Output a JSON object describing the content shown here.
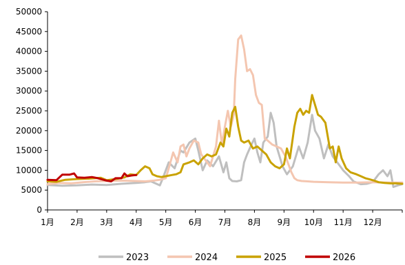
{
  "chart_data": {
    "type": "line",
    "title": "",
    "xlabel": "",
    "ylabel": "",
    "ylim": [
      0,
      50000
    ],
    "yticks": [
      0,
      5000,
      10000,
      15000,
      20000,
      25000,
      30000,
      35000,
      40000,
      45000,
      50000
    ],
    "xlim": [
      1,
      13
    ],
    "xticks": [
      {
        "x": 1,
        "label": "1月"
      },
      {
        "x": 2,
        "label": "2月"
      },
      {
        "x": 3,
        "label": "3月"
      },
      {
        "x": 4,
        "label": "4月"
      },
      {
        "x": 5,
        "label": "5月"
      },
      {
        "x": 6,
        "label": "6月"
      },
      {
        "x": 7,
        "label": "7月"
      },
      {
        "x": 8,
        "label": "8月"
      },
      {
        "x": 9,
        "label": "9月"
      },
      {
        "x": 10,
        "label": "10月"
      },
      {
        "x": 11,
        "label": "11月"
      },
      {
        "x": 12,
        "label": "12月"
      }
    ],
    "grid": false,
    "legend_position": "bottom",
    "series": [
      {
        "name": "2023",
        "color": "#bfbfbf",
        "points": [
          [
            1.0,
            6300
          ],
          [
            1.5,
            6100
          ],
          [
            2.0,
            6200
          ],
          [
            2.5,
            6400
          ],
          [
            3.0,
            6300
          ],
          [
            3.5,
            6600
          ],
          [
            4.0,
            6800
          ],
          [
            4.3,
            7000
          ],
          [
            4.5,
            7200
          ],
          [
            4.8,
            6200
          ],
          [
            4.9,
            8000
          ],
          [
            5.1,
            12000
          ],
          [
            5.3,
            10500
          ],
          [
            5.5,
            15000
          ],
          [
            5.6,
            14500
          ],
          [
            5.8,
            17000
          ],
          [
            5.9,
            17500
          ],
          [
            6.0,
            18000
          ],
          [
            6.1,
            15000
          ],
          [
            6.25,
            10000
          ],
          [
            6.4,
            12500
          ],
          [
            6.6,
            11000
          ],
          [
            6.8,
            13500
          ],
          [
            6.95,
            9500
          ],
          [
            7.05,
            12000
          ],
          [
            7.15,
            8000
          ],
          [
            7.25,
            7300
          ],
          [
            7.4,
            7200
          ],
          [
            7.55,
            7500
          ],
          [
            7.65,
            12000
          ],
          [
            7.75,
            14000
          ],
          [
            7.9,
            16500
          ],
          [
            8.0,
            18000
          ],
          [
            8.1,
            14500
          ],
          [
            8.2,
            12000
          ],
          [
            8.3,
            17000
          ],
          [
            8.45,
            18500
          ],
          [
            8.55,
            24500
          ],
          [
            8.65,
            22000
          ],
          [
            8.75,
            16000
          ],
          [
            8.85,
            13500
          ],
          [
            8.95,
            11000
          ],
          [
            9.1,
            9000
          ],
          [
            9.3,
            11000
          ],
          [
            9.5,
            16000
          ],
          [
            9.65,
            13000
          ],
          [
            9.8,
            17000
          ],
          [
            9.95,
            24000
          ],
          [
            10.05,
            20000
          ],
          [
            10.2,
            18000
          ],
          [
            10.35,
            13000
          ],
          [
            10.5,
            16500
          ],
          [
            10.65,
            13500
          ],
          [
            10.8,
            12000
          ],
          [
            11.0,
            10000
          ],
          [
            11.2,
            8500
          ],
          [
            11.35,
            7200
          ],
          [
            11.6,
            6500
          ],
          [
            11.8,
            6600
          ],
          [
            12.0,
            7000
          ],
          [
            12.2,
            9000
          ],
          [
            12.35,
            10000
          ],
          [
            12.5,
            8500
          ],
          [
            12.6,
            10000
          ],
          [
            12.7,
            5800
          ],
          [
            12.85,
            6200
          ],
          [
            13.0,
            6500
          ]
        ]
      },
      {
        "name": "2024",
        "color": "#f4c6b0",
        "points": [
          [
            1.0,
            6500
          ],
          [
            1.4,
            6800
          ],
          [
            1.8,
            6700
          ],
          [
            2.2,
            7000
          ],
          [
            2.6,
            7200
          ],
          [
            3.0,
            7300
          ],
          [
            3.5,
            7400
          ],
          [
            4.0,
            7300
          ],
          [
            4.3,
            7200
          ],
          [
            4.6,
            7400
          ],
          [
            4.8,
            7600
          ],
          [
            5.0,
            8000
          ],
          [
            5.1,
            10500
          ],
          [
            5.25,
            14500
          ],
          [
            5.4,
            12000
          ],
          [
            5.5,
            16000
          ],
          [
            5.6,
            16500
          ],
          [
            5.7,
            13500
          ],
          [
            5.8,
            15500
          ],
          [
            5.95,
            17500
          ],
          [
            6.1,
            17000
          ],
          [
            6.2,
            14000
          ],
          [
            6.35,
            12500
          ],
          [
            6.5,
            11000
          ],
          [
            6.6,
            13500
          ],
          [
            6.7,
            16000
          ],
          [
            6.8,
            22500
          ],
          [
            6.9,
            16500
          ],
          [
            7.0,
            21000
          ],
          [
            7.1,
            25000
          ],
          [
            7.2,
            21000
          ],
          [
            7.3,
            24000
          ],
          [
            7.35,
            33000
          ],
          [
            7.45,
            43000
          ],
          [
            7.55,
            44000
          ],
          [
            7.65,
            40500
          ],
          [
            7.75,
            35000
          ],
          [
            7.85,
            35500
          ],
          [
            7.95,
            34000
          ],
          [
            8.05,
            29000
          ],
          [
            8.15,
            27000
          ],
          [
            8.25,
            26500
          ],
          [
            8.35,
            18000
          ],
          [
            8.45,
            17500
          ],
          [
            8.6,
            16500
          ],
          [
            8.75,
            16000
          ],
          [
            8.9,
            15500
          ],
          [
            9.05,
            13500
          ],
          [
            9.15,
            11500
          ],
          [
            9.25,
            9500
          ],
          [
            9.35,
            8000
          ],
          [
            9.45,
            7500
          ],
          [
            9.6,
            7300
          ],
          [
            9.8,
            7200
          ],
          [
            10.0,
            7100
          ],
          [
            10.5,
            7000
          ],
          [
            11.0,
            6900
          ],
          [
            11.5,
            6900
          ],
          [
            12.0,
            7000
          ],
          [
            12.5,
            6900
          ],
          [
            13.0,
            6900
          ]
        ]
      },
      {
        "name": "2025",
        "color": "#c9a200",
        "points": [
          [
            1.0,
            7200
          ],
          [
            1.3,
            7100
          ],
          [
            1.6,
            7600
          ],
          [
            2.0,
            7800
          ],
          [
            2.4,
            7900
          ],
          [
            2.8,
            8100
          ],
          [
            3.0,
            7500
          ],
          [
            3.3,
            7800
          ],
          [
            3.6,
            8200
          ],
          [
            3.8,
            9000
          ],
          [
            4.0,
            8800
          ],
          [
            4.15,
            10000
          ],
          [
            4.3,
            11000
          ],
          [
            4.45,
            10500
          ],
          [
            4.55,
            9000
          ],
          [
            4.7,
            8500
          ],
          [
            4.85,
            8300
          ],
          [
            5.0,
            8500
          ],
          [
            5.2,
            8800
          ],
          [
            5.35,
            9000
          ],
          [
            5.5,
            9500
          ],
          [
            5.6,
            11500
          ],
          [
            5.8,
            12000
          ],
          [
            5.95,
            12500
          ],
          [
            6.1,
            11500
          ],
          [
            6.25,
            13000
          ],
          [
            6.4,
            14000
          ],
          [
            6.55,
            13500
          ],
          [
            6.7,
            14000
          ],
          [
            6.85,
            17000
          ],
          [
            6.95,
            16000
          ],
          [
            7.05,
            20500
          ],
          [
            7.15,
            18500
          ],
          [
            7.25,
            24500
          ],
          [
            7.35,
            26000
          ],
          [
            7.45,
            21000
          ],
          [
            7.55,
            17500
          ],
          [
            7.65,
            17000
          ],
          [
            7.8,
            17500
          ],
          [
            7.95,
            15500
          ],
          [
            8.1,
            16000
          ],
          [
            8.25,
            15000
          ],
          [
            8.4,
            14000
          ],
          [
            8.55,
            12000
          ],
          [
            8.7,
            11000
          ],
          [
            8.85,
            10500
          ],
          [
            9.0,
            11500
          ],
          [
            9.1,
            15500
          ],
          [
            9.2,
            13000
          ],
          [
            9.35,
            21000
          ],
          [
            9.45,
            24500
          ],
          [
            9.55,
            25500
          ],
          [
            9.65,
            24000
          ],
          [
            9.75,
            25000
          ],
          [
            9.85,
            24500
          ],
          [
            9.95,
            29000
          ],
          [
            10.05,
            26500
          ],
          [
            10.15,
            24000
          ],
          [
            10.25,
            23500
          ],
          [
            10.4,
            22000
          ],
          [
            10.55,
            15500
          ],
          [
            10.65,
            16000
          ],
          [
            10.75,
            12000
          ],
          [
            10.85,
            16000
          ],
          [
            10.95,
            13000
          ],
          [
            11.1,
            10500
          ],
          [
            11.25,
            9500
          ],
          [
            11.45,
            9000
          ],
          [
            11.6,
            8500
          ],
          [
            11.75,
            8000
          ],
          [
            11.9,
            7700
          ],
          [
            12.05,
            7400
          ],
          [
            12.2,
            7000
          ],
          [
            12.4,
            6800
          ],
          [
            12.6,
            6700
          ],
          [
            12.8,
            6700
          ],
          [
            13.0,
            6600
          ]
        ]
      },
      {
        "name": "2026",
        "color": "#c00000",
        "points": [
          [
            1.0,
            7600
          ],
          [
            1.3,
            7500
          ],
          [
            1.5,
            8900
          ],
          [
            1.75,
            8900
          ],
          [
            1.9,
            9200
          ],
          [
            2.0,
            8200
          ],
          [
            2.25,
            8100
          ],
          [
            2.5,
            8300
          ],
          [
            2.7,
            8000
          ],
          [
            3.0,
            7400
          ],
          [
            3.15,
            7200
          ],
          [
            3.3,
            8000
          ],
          [
            3.5,
            8000
          ],
          [
            3.6,
            9200
          ],
          [
            3.7,
            8500
          ],
          [
            3.85,
            8700
          ],
          [
            4.0,
            8800
          ]
        ]
      }
    ]
  }
}
